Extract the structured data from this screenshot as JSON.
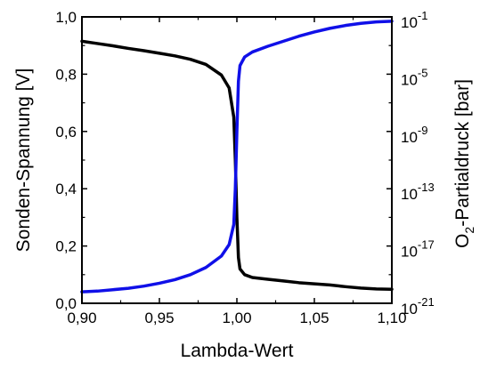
{
  "chart_data": {
    "type": "line",
    "xlabel": "Lambda-Wert",
    "ylabel_left": "Sonden-Spannung [V]",
    "ylabel_right": {
      "main": "O",
      "sub": "2",
      "rest": "-Partialdruck [bar]",
      "color": "#1010e8"
    },
    "xlim": [
      0.9,
      1.1
    ],
    "ylim_left": [
      0.0,
      1.0
    ],
    "ylim_right_log10": [
      -21,
      -1
    ],
    "right_scale": "log",
    "grid": false,
    "x_ticks": [
      {
        "value": 0.9,
        "label": "0,90"
      },
      {
        "value": 0.95,
        "label": "0,95"
      },
      {
        "value": 1.0,
        "label": "1,00"
      },
      {
        "value": 1.05,
        "label": "1,05"
      },
      {
        "value": 1.1,
        "label": "1,10"
      }
    ],
    "y_left_ticks": [
      {
        "value": 0.0,
        "label": "0,0"
      },
      {
        "value": 0.2,
        "label": "0,2"
      },
      {
        "value": 0.4,
        "label": "0,4"
      },
      {
        "value": 0.6,
        "label": "0,6"
      },
      {
        "value": 0.8,
        "label": "0,8"
      },
      {
        "value": 1.0,
        "label": "1,0"
      }
    ],
    "y_right_ticks": [
      {
        "exp": -21,
        "base": "10",
        "sup": "-21"
      },
      {
        "exp": -17,
        "base": "10",
        "sup": "-17"
      },
      {
        "exp": -13,
        "base": "10",
        "sup": "-13"
      },
      {
        "exp": -9,
        "base": "10",
        "sup": "-9"
      },
      {
        "exp": -5,
        "base": "10",
        "sup": "-5"
      },
      {
        "exp": -1,
        "base": "10",
        "sup": "-1"
      }
    ],
    "series": [
      {
        "axis": "left",
        "color": "#000000",
        "x": [
          0.9,
          0.91,
          0.92,
          0.93,
          0.94,
          0.95,
          0.96,
          0.97,
          0.98,
          0.99,
          0.995,
          0.998,
          0.999,
          1.0,
          1.001,
          1.002,
          1.005,
          1.01,
          1.02,
          1.03,
          1.04,
          1.05,
          1.06,
          1.07,
          1.08,
          1.09,
          1.1
        ],
        "y": [
          0.915,
          0.907,
          0.899,
          0.89,
          0.882,
          0.873,
          0.864,
          0.852,
          0.834,
          0.797,
          0.752,
          0.65,
          0.5,
          0.3,
          0.16,
          0.12,
          0.1,
          0.09,
          0.084,
          0.078,
          0.072,
          0.068,
          0.064,
          0.058,
          0.053,
          0.05,
          0.049
        ]
      },
      {
        "axis": "right",
        "color": "#1010e8",
        "x_log": [
          0.9,
          0.91,
          0.92,
          0.93,
          0.94,
          0.95,
          0.96,
          0.97,
          0.98,
          0.99,
          0.995,
          0.998,
          0.999,
          1.0,
          1.001,
          1.002,
          1.005,
          1.01,
          1.02,
          1.03,
          1.04,
          1.05,
          1.06,
          1.07,
          1.08,
          1.09,
          1.1
        ],
        "log10_y": [
          -20.2,
          -20.15,
          -20.05,
          -19.95,
          -19.8,
          -19.6,
          -19.35,
          -19.0,
          -18.5,
          -17.7,
          -16.9,
          -15.5,
          -13.0,
          -9.0,
          -5.5,
          -4.4,
          -3.8,
          -3.45,
          -3.05,
          -2.7,
          -2.35,
          -2.05,
          -1.8,
          -1.6,
          -1.45,
          -1.35,
          -1.3
        ]
      }
    ]
  }
}
